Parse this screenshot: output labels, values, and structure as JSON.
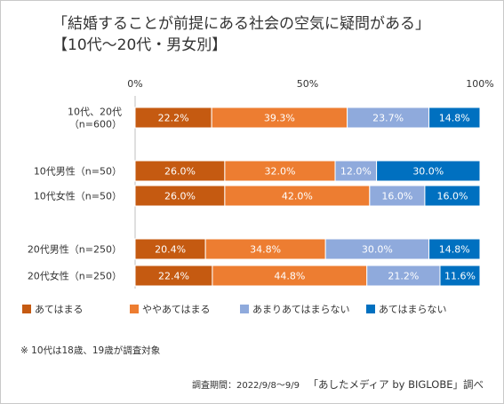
{
  "title_lines": [
    "「結婚することが前提にある社会の空気に疑問がある」",
    "【10代〜20代・男女別】"
  ],
  "chart_data": {
    "type": "bar",
    "orientation": "horizontal",
    "stacked": true,
    "normalized": true,
    "categories": [
      [
        "10代、20代",
        "（n=600）"
      ],
      [
        "10代男性（n=50）"
      ],
      [
        "10代女性（n=50）"
      ],
      [
        "20代男性（n=250）"
      ],
      [
        "20代女性（n=250）"
      ]
    ],
    "series": [
      {
        "name": "あてはまる",
        "color": "#C55A11",
        "values": [
          22.2,
          26.0,
          26.0,
          20.4,
          22.4
        ]
      },
      {
        "name": "ややあてはまる",
        "color": "#ED7D31",
        "values": [
          39.3,
          32.0,
          42.0,
          34.8,
          44.8
        ]
      },
      {
        "name": "あまりあてはまらない",
        "color": "#8FAADC",
        "values": [
          23.7,
          12.0,
          16.0,
          30.0,
          21.2
        ]
      },
      {
        "name": "あてはまらない",
        "color": "#0070C0",
        "values": [
          14.8,
          30.0,
          16.0,
          14.8,
          11.6
        ]
      }
    ],
    "x_ticks": [
      "0%",
      "50%",
      "100%"
    ],
    "xlim": [
      0,
      100
    ],
    "legend_position": "bottom",
    "grid": false
  },
  "footnote": "※ 10代は18歳、19歳が調査対象",
  "source": {
    "period": "調査期間：2022/9/8〜9/9",
    "brand": "「あしたメディア by BIGLOBE」調べ"
  }
}
